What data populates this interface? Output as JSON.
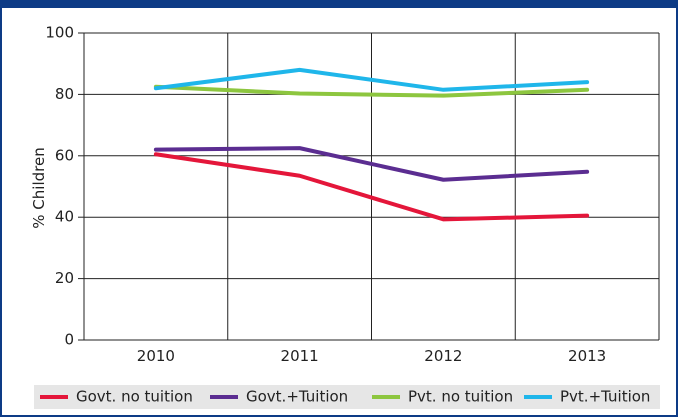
{
  "header": {
    "title": ""
  },
  "chart_data": {
    "type": "line",
    "title": "",
    "xlabel": "",
    "ylabel": "% Children",
    "categories": [
      "2010",
      "2011",
      "2012",
      "2013"
    ],
    "ylim": [
      0,
      100
    ],
    "yticks": [
      0,
      20,
      40,
      60,
      80,
      100
    ],
    "grid": true,
    "legend_position": "bottom",
    "series": [
      {
        "name": "Govt. no tuition",
        "color": "#e4163a",
        "values": [
          60.5,
          53.5,
          39.3,
          40.5
        ]
      },
      {
        "name": "Govt.+Tuition",
        "color": "#5b2d91",
        "values": [
          62.0,
          62.5,
          52.2,
          54.8
        ]
      },
      {
        "name": "Pvt. no tuition",
        "color": "#8dc63f",
        "values": [
          82.5,
          80.3,
          79.6,
          81.5
        ]
      },
      {
        "name": "Pvt.+Tuition",
        "color": "#1fb6ea",
        "values": [
          82.0,
          88.0,
          81.5,
          84.0
        ]
      }
    ]
  }
}
